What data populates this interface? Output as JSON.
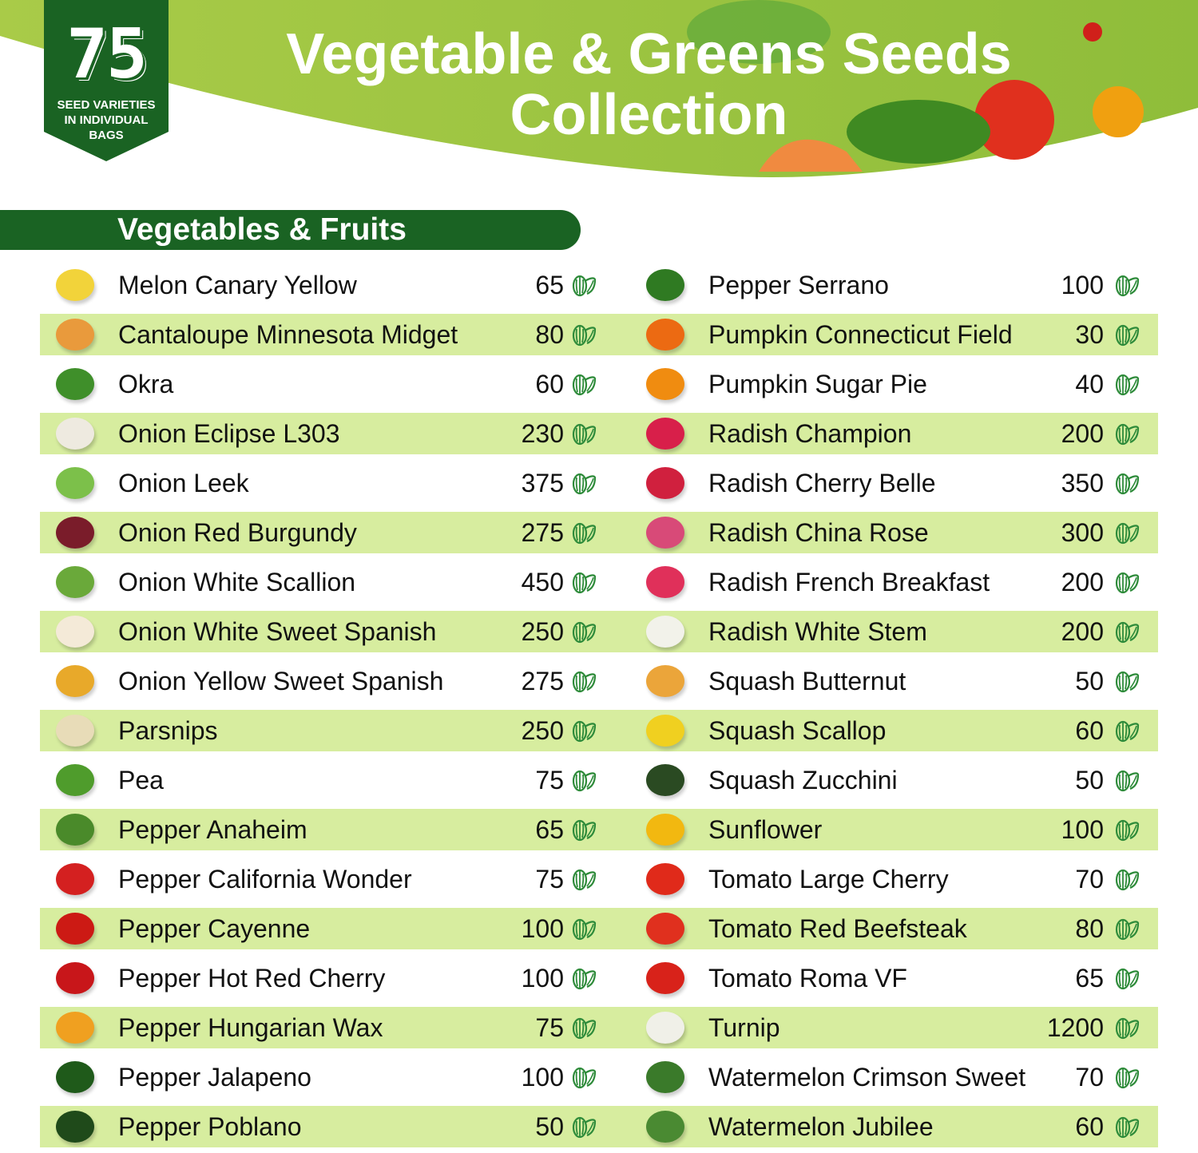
{
  "badge": {
    "number": "75",
    "text": "SEED VARIETIES\nIN INDIVIDUAL\nBAGS"
  },
  "title": {
    "line1": "Vegetable & Greens Seeds",
    "line2": "Collection"
  },
  "section": {
    "label": "Vegetables & Fruits"
  },
  "colors": {
    "dark_green": "#1a6323",
    "light_green": "#9cc43f",
    "stripe": "#d7ed9f",
    "seed_icon": "#2e8b3a"
  },
  "seed_icon": "seed-icon",
  "left_column": [
    {
      "name": "Melon Canary Yellow",
      "count": "65",
      "color": "#f2d33a"
    },
    {
      "name": "Cantaloupe Minnesota Midget",
      "count": "80",
      "color": "#e99a3c"
    },
    {
      "name": "Okra",
      "count": "60",
      "color": "#3f8f2a"
    },
    {
      "name": "Onion Eclipse L303",
      "count": "230",
      "color": "#eeeae0"
    },
    {
      "name": "Onion Leek",
      "count": "375",
      "color": "#7cc04a"
    },
    {
      "name": "Onion Red Burgundy",
      "count": "275",
      "color": "#7a1c2a"
    },
    {
      "name": "Onion White Scallion",
      "count": "450",
      "color": "#6aa93a"
    },
    {
      "name": "Onion White Sweet Spanish",
      "count": "250",
      "color": "#f4ead8"
    },
    {
      "name": "Onion Yellow Sweet Spanish",
      "count": "275",
      "color": "#e8a92a"
    },
    {
      "name": "Parsnips",
      "count": "250",
      "color": "#e8dcb8"
    },
    {
      "name": "Pea",
      "count": "75",
      "color": "#4f9c2c"
    },
    {
      "name": "Pepper Anaheim",
      "count": "65",
      "color": "#4a8a2a"
    },
    {
      "name": "Pepper California Wonder",
      "count": "75",
      "color": "#d42020"
    },
    {
      "name": "Pepper Cayenne",
      "count": "100",
      "color": "#cc1a14"
    },
    {
      "name": "Pepper Hot Red Cherry",
      "count": "100",
      "color": "#c8161a"
    },
    {
      "name": "Pepper Hungarian Wax",
      "count": "75",
      "color": "#f0a020"
    },
    {
      "name": "Pepper Jalapeno",
      "count": "100",
      "color": "#1f5a1a"
    },
    {
      "name": "Pepper Poblano",
      "count": "50",
      "color": "#1f4a1a"
    }
  ],
  "right_column": [
    {
      "name": "Pepper Serrano",
      "count": "100",
      "color": "#2f7a22"
    },
    {
      "name": "Pumpkin Connecticut Field",
      "count": "30",
      "color": "#ec6a12"
    },
    {
      "name": "Pumpkin Sugar Pie",
      "count": "40",
      "color": "#f08c10"
    },
    {
      "name": "Radish Champion",
      "count": "200",
      "color": "#d81f4a"
    },
    {
      "name": "Radish Cherry Belle",
      "count": "350",
      "color": "#d0203e"
    },
    {
      "name": "Radish China Rose",
      "count": "300",
      "color": "#d84a78"
    },
    {
      "name": "Radish French Breakfast",
      "count": "200",
      "color": "#e0305a"
    },
    {
      "name": "Radish White Stem",
      "count": "200",
      "color": "#f2f2ea"
    },
    {
      "name": "Squash Butternut",
      "count": "50",
      "color": "#eba53a"
    },
    {
      "name": "Squash Scallop",
      "count": "60",
      "color": "#f0d020"
    },
    {
      "name": "Squash Zucchini",
      "count": "50",
      "color": "#2a4a22"
    },
    {
      "name": "Sunflower",
      "count": "100",
      "color": "#f2b810"
    },
    {
      "name": "Tomato Large Cherry",
      "count": "70",
      "color": "#e02a1a"
    },
    {
      "name": "Tomato Red Beefsteak",
      "count": "80",
      "color": "#e0301e"
    },
    {
      "name": "Tomato Roma VF",
      "count": "65",
      "color": "#d8221a"
    },
    {
      "name": "Turnip",
      "count": "1200",
      "color": "#f0f0e8"
    },
    {
      "name": "Watermelon Crimson Sweet",
      "count": "70",
      "color": "#3a7a2a"
    },
    {
      "name": "Watermelon Jubilee",
      "count": "60",
      "color": "#4a8a32"
    }
  ]
}
